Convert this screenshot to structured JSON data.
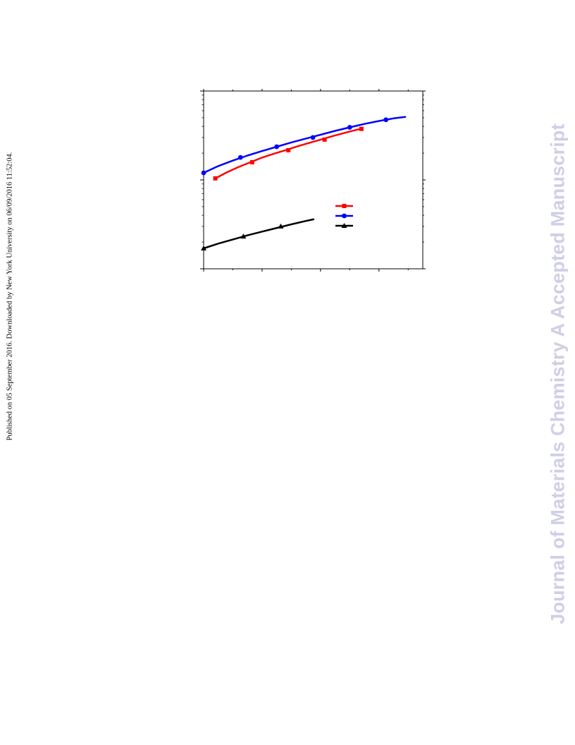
{
  "side_note": "Published on 05 September 2016. Downloaded by New York University on 06/09/2016 11:52:04.",
  "watermark": "Journal of Materials Chemistry A Accepted Manuscript",
  "chart_data": {
    "type": "line",
    "title": "",
    "xlabel": "",
    "ylabel": "",
    "yscale": "log",
    "xlim": [
      0,
      3.75
    ],
    "ylim": [
      1,
      100
    ],
    "x_major_ticks": [
      0,
      1,
      2,
      3
    ],
    "x_minor_ticks": [
      0.5,
      1.5,
      2.5,
      3.5
    ],
    "y_major_ticks": [
      1,
      10,
      100
    ],
    "grid": false,
    "legend": "right-middle",
    "series": [
      {
        "color": "#ff0000",
        "marker": "square",
        "x": [
          0.2,
          0.4,
          0.6,
          0.8,
          1.0,
          1.2,
          1.4,
          1.6,
          1.8,
          2.0,
          2.2,
          2.4,
          2.6,
          2.7
        ],
        "y": [
          10.4,
          12.2,
          14.0,
          15.8,
          17.8,
          19.7,
          21.6,
          23.8,
          26.0,
          28.4,
          31.0,
          33.6,
          36.4,
          37.5
        ],
        "marker_x": [
          0.2,
          0.83,
          1.45,
          2.07,
          2.7
        ],
        "marker_y": [
          10.4,
          15.8,
          21.6,
          28.4,
          37.5
        ]
      },
      {
        "color": "#0000ff",
        "marker": "circle",
        "x": [
          0,
          0.25,
          0.5,
          0.75,
          1.0,
          1.25,
          1.5,
          1.75,
          2.0,
          2.25,
          2.5,
          2.75,
          3.0,
          3.25,
          3.45
        ],
        "y": [
          12.0,
          14.3,
          16.5,
          18.8,
          21.1,
          23.6,
          26.4,
          29.2,
          32.2,
          35.6,
          39.0,
          42.6,
          46.0,
          49.2,
          51.0
        ],
        "marker_x": [
          0,
          0.63,
          1.25,
          1.87,
          2.5,
          3.12
        ],
        "marker_y": [
          12.0,
          17.9,
          23.6,
          30.0,
          39.0,
          47.5
        ]
      },
      {
        "color": "#000000",
        "marker": "triangle",
        "x": [
          0,
          0.25,
          0.5,
          0.75,
          1.0,
          1.25,
          1.5,
          1.75,
          1.88
        ],
        "y": [
          1.7,
          1.92,
          2.14,
          2.38,
          2.62,
          2.88,
          3.16,
          3.45,
          3.6
        ],
        "marker_x": [
          0,
          0.68,
          1.32
        ],
        "marker_y": [
          1.7,
          2.31,
          3.0
        ]
      }
    ]
  }
}
